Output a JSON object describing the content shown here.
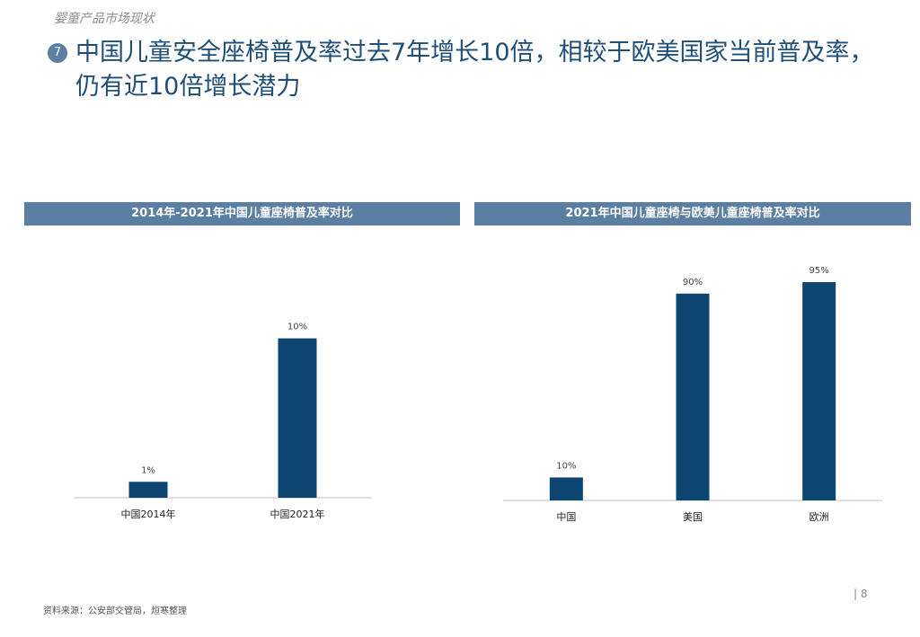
{
  "section_label": "婴童产品市场现状",
  "bullet_number": "7",
  "headline": "中国儿童安全座椅普及率过去7年增长10倍，相较于欧美国家当前普及率，仍有近10倍增长潜力",
  "chart_data": [
    {
      "type": "bar",
      "title": "2014年-2021年中国儿童座椅普及率对比",
      "categories": [
        "中国2014年",
        "中国2021年"
      ],
      "values": [
        1,
        10
      ],
      "value_labels": [
        "1%",
        "10%"
      ],
      "unit": "%",
      "ylim": [
        0,
        11.5
      ],
      "color": "#0d4670",
      "grid": false
    },
    {
      "type": "bar",
      "title": "2021年中国儿童座椅与欧美儿童座椅普及率对比",
      "categories": [
        "中国",
        "美国",
        "欧洲"
      ],
      "values": [
        10,
        90,
        95
      ],
      "value_labels": [
        "10%",
        "90%",
        "95%"
      ],
      "unit": "%",
      "ylim": [
        0,
        95
      ],
      "color": "#0d4670",
      "grid": false
    }
  ],
  "page_number": "| 8",
  "source": "资料来源：公安部交管局，烜寒整理"
}
